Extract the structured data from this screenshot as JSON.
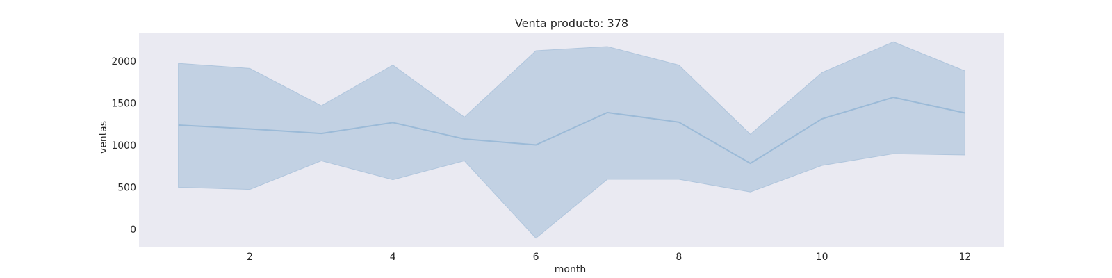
{
  "chart_data": {
    "type": "line",
    "title": "Venta producto: 378",
    "xlabel": "month",
    "ylabel": "ventas",
    "x": [
      1,
      2,
      3,
      4,
      5,
      6,
      7,
      8,
      9,
      10,
      11,
      12
    ],
    "series": [
      {
        "values": [
          1240,
          1195,
          1140,
          1270,
          1075,
          1005,
          1390,
          1275,
          785,
          1315,
          1570,
          1385
        ],
        "ci_lower": [
          500,
          475,
          815,
          590,
          815,
          -105,
          595,
          595,
          445,
          760,
          900,
          885
        ],
        "ci_upper": [
          1975,
          1915,
          1470,
          1955,
          1335,
          2125,
          2175,
          1955,
          1130,
          1865,
          2230,
          1885
        ]
      }
    ],
    "xticks": [
      2,
      4,
      6,
      8,
      10,
      12
    ],
    "yticks": [
      0,
      500,
      1000,
      1500,
      2000
    ],
    "xlim": [
      0.45,
      12.55
    ],
    "ylim": [
      -215,
      2340
    ],
    "grid": false,
    "colors": {
      "plot_background": "#eaeaf2",
      "band_fill": "#a1bcd7",
      "line": "#9bbad7"
    }
  }
}
